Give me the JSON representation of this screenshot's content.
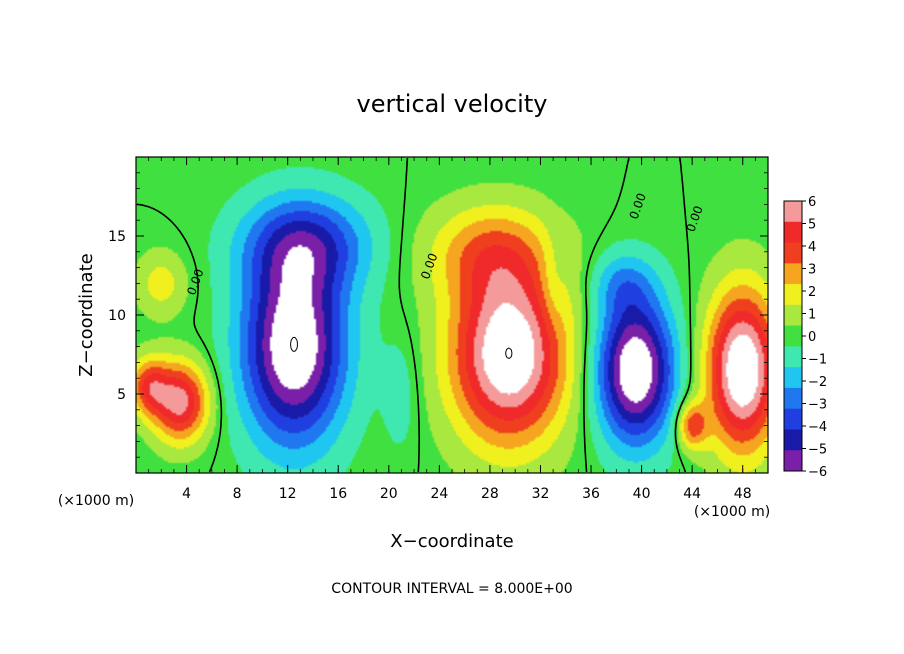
{
  "chart_data": {
    "type": "heatmap",
    "title": "vertical velocity",
    "xlabel": "X−coordinate",
    "ylabel": "Z−coordinate",
    "x_unit_left": "(×1000 m)",
    "x_unit_right": "(×1000 m)",
    "footer": "CONTOUR INTERVAL = 8.000E+00",
    "xlim": [
      0,
      50
    ],
    "ylim": [
      0,
      20
    ],
    "x_ticks": [
      4,
      8,
      12,
      16,
      20,
      24,
      28,
      32,
      36,
      40,
      44,
      48
    ],
    "x_tick_labels": [
      "4",
      "8",
      "12",
      "16",
      "20",
      "24",
      "28",
      "32",
      "36",
      "40",
      "44",
      "48"
    ],
    "y_ticks": [
      5,
      10,
      15
    ],
    "y_tick_labels": [
      "5",
      "10",
      "15"
    ],
    "colorbar": {
      "levels": [
        -6,
        -5,
        -4,
        -3,
        -2,
        -1,
        0,
        1,
        2,
        3,
        4,
        5,
        6
      ],
      "labels": [
        "−6",
        "−5",
        "−4",
        "−3",
        "−2",
        "−1",
        "0",
        "1",
        "2",
        "3",
        "4",
        "5",
        "6"
      ],
      "colors": [
        "#7a1fa8",
        "#1a1aa8",
        "#1f3fe0",
        "#1f78f0",
        "#1fc6f0",
        "#3fe8b0",
        "#3fe03f",
        "#a8e83f",
        "#f0f01f",
        "#f5a51f",
        "#f03f1f",
        "#f02a2a",
        "#f59a9a"
      ]
    },
    "field_features": [
      {
        "kind": "updraft",
        "x": 3.5,
        "z": 4.5,
        "sx": 2.2,
        "sz": 2.5,
        "amp": 6
      },
      {
        "kind": "updraft",
        "x": 1.0,
        "z": 5.5,
        "sx": 1.5,
        "sz": 1.8,
        "amp": 4
      },
      {
        "kind": "updraft",
        "x": 29.5,
        "z": 7.5,
        "sx": 4.5,
        "sz": 5.5,
        "amp": 8
      },
      {
        "kind": "updraft",
        "x": 48.0,
        "z": 6.5,
        "sx": 2.8,
        "sz": 5.0,
        "amp": 8
      },
      {
        "kind": "updraft",
        "x": 28.0,
        "z": 14.0,
        "sx": 5.0,
        "sz": 3.0,
        "amp": 3
      },
      {
        "kind": "updraft",
        "x": 2.0,
        "z": 12.0,
        "sx": 2.0,
        "sz": 2.0,
        "amp": 2
      },
      {
        "kind": "updraft",
        "x": 44.0,
        "z": 3.0,
        "sx": 1.2,
        "sz": 1.5,
        "amp": 4
      },
      {
        "kind": "downdraft",
        "x": 12.5,
        "z": 8.0,
        "sx": 4.0,
        "sz": 6.0,
        "amp": -8
      },
      {
        "kind": "downdraft",
        "x": 13.5,
        "z": 14.5,
        "sx": 5.0,
        "sz": 3.0,
        "amp": -4
      },
      {
        "kind": "downdraft",
        "x": 39.5,
        "z": 6.5,
        "sx": 3.0,
        "sz": 4.5,
        "amp": -8
      },
      {
        "kind": "downdraft",
        "x": 38.5,
        "z": 12.0,
        "sx": 2.5,
        "sz": 2.0,
        "amp": -2
      },
      {
        "kind": "downdraft",
        "x": 21.0,
        "z": 5.0,
        "sx": 1.5,
        "sz": 4.0,
        "amp": -1
      },
      {
        "kind": "downdraft",
        "x": 33.0,
        "z": 12.0,
        "sx": 1.0,
        "sz": 3.0,
        "amp": -1
      }
    ],
    "contour_labels": [
      {
        "x": 5.0,
        "z": 12.0,
        "text": "0.00"
      },
      {
        "x": 23.5,
        "z": 13.0,
        "text": "0.00"
      },
      {
        "x": 40.0,
        "z": 16.8,
        "text": "0.00"
      },
      {
        "x": 44.5,
        "z": 16.0,
        "text": "0.00"
      }
    ],
    "legend_position": "right",
    "grid": false
  }
}
